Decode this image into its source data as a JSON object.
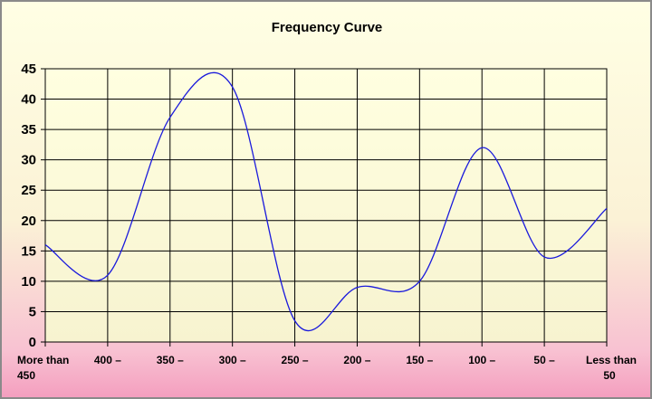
{
  "chart_data": {
    "type": "line",
    "title": "Frequency Curve",
    "xlabel": "",
    "ylabel": "",
    "ylim": [
      0,
      45
    ],
    "yticks": [
      0,
      5,
      10,
      15,
      20,
      25,
      30,
      35,
      40,
      45
    ],
    "categories": [
      [
        "More than",
        "450"
      ],
      [
        "400 –"
      ],
      [
        "350 –"
      ],
      [
        "300 –"
      ],
      [
        "250 –"
      ],
      [
        "200 –"
      ],
      [
        "150 –"
      ],
      [
        "100 –"
      ],
      [
        "50 –"
      ],
      [
        "Less than",
        "50"
      ]
    ],
    "series": [
      {
        "values": [
          16,
          11,
          37,
          42,
          3.5,
          9,
          10,
          32,
          14,
          22
        ]
      }
    ],
    "grid": true,
    "legend": "none",
    "colors": {
      "line": "#1a1adc",
      "grid": "#000000",
      "plot_bg_top": "#ffffe0",
      "plot_bg_bottom": "#f7f3d0",
      "bg_top": "#ffffe4",
      "bg_bottom": "#f49fbf"
    }
  }
}
